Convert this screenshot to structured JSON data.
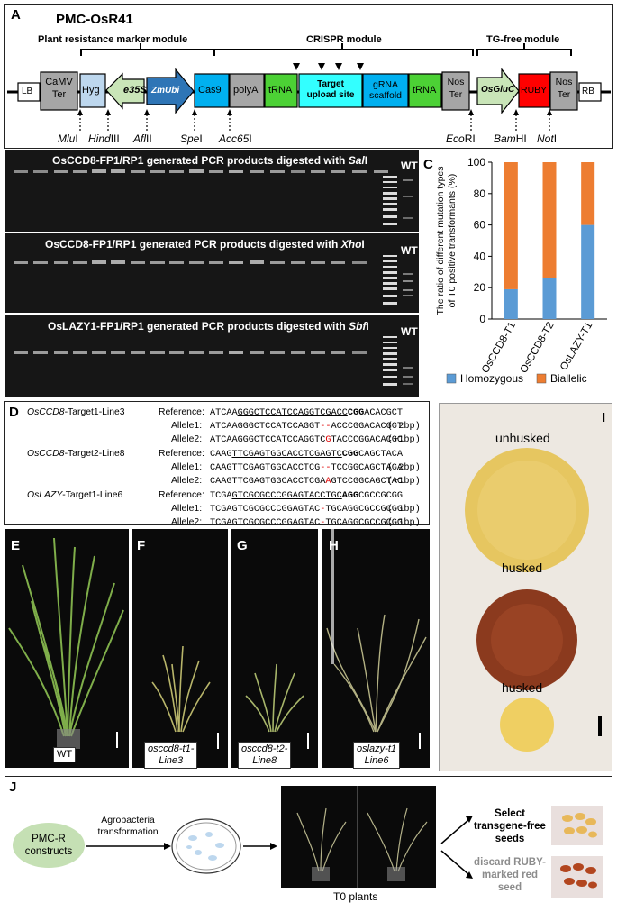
{
  "panelA": {
    "letter": "A",
    "title": "PMC-OsR41",
    "modules": [
      "Plant resistance marker module",
      "CRISPR module",
      "TG-free module"
    ],
    "elements": [
      "LB",
      "CaMV Ter",
      "Hyg",
      "e35S",
      "ZmUbi",
      "Cas9",
      "polyA",
      "tRNA",
      "Target upload site",
      "gRNA scaffold",
      "tRNA",
      "Nos Ter",
      "OsGluC",
      "RUBY",
      "Nos Ter",
      "RB"
    ],
    "sites": [
      "MluI",
      "HindIII",
      "AflII",
      "SpeI",
      "Acc65I",
      "EcoRI",
      "BamHI",
      "NotI"
    ],
    "colors": {
      "gray": "#a6a6a6",
      "hyg": "#bdd7ee",
      "e35s": "#c9e5b8",
      "zmubi": "#2e75b6",
      "cas9": "#00b0f0",
      "trna": "#4cd135",
      "target": "#33ffff",
      "ruby": "#ff0000",
      "glu": "#c9e5b8"
    }
  },
  "panelB": {
    "letter": "B",
    "gels": [
      {
        "title_pre": "OsCCD8-FP1/RP1 generated PCR products digested with ",
        "enzyme": "Sal",
        "suffix": "I",
        "wt": "WT"
      },
      {
        "title_pre": "OsCCD8-FP1/RP1 generated PCR products digested with ",
        "enzyme": "Xho",
        "suffix": "I",
        "wt": "WT"
      },
      {
        "title_pre": "OsLAZY1-FP1/RP1 generated PCR products digested with ",
        "enzyme": "Sbf",
        "suffix": "I",
        "wt": "WT"
      }
    ]
  },
  "panelC": {
    "letter": "C",
    "chart_data": {
      "type": "bar",
      "stacked": true,
      "categories": [
        "OsCCD8-T1",
        "OsCCD8-T2",
        "OsLAZY-T1"
      ],
      "series": [
        {
          "name": "Homozygous",
          "values": [
            19,
            26,
            60
          ],
          "color": "#5b9bd5"
        },
        {
          "name": "Biallelic",
          "values": [
            81,
            74,
            40
          ],
          "color": "#ed7d31"
        }
      ],
      "ylabel": "The ratio of different mutation types of T0 positive transformants (%)",
      "ylim": [
        0,
        100
      ],
      "yticks": [
        "0",
        "20",
        "40",
        "60",
        "80",
        "100"
      ],
      "legend": "bottom"
    }
  },
  "panelD": {
    "letter": "D",
    "groups": [
      {
        "gene": "OsCCD8",
        "name": "-Target1-Line3",
        "ref": {
          "label": "Reference:",
          "pre": "ATCAA",
          "ul": "GGGCTCCATCCAGGTCGACC",
          "pam": "CGG",
          "post": "ACACGCT"
        },
        "a1": {
          "label": "Allele1:",
          "pre": "ATCAAGGGCTCCATCCAGGT",
          "red": "--",
          "post": "ACCCGGACACGCT",
          "note": "(-2bp)"
        },
        "a2": {
          "label": "Allele2:",
          "pre": "ATCAAGGGCTCCATCCAGGTC",
          "red": "G",
          "post": "TACCCGGACACGC",
          "note": "(+1bp)"
        }
      },
      {
        "gene": "OsCCD8",
        "name": "-Target2-Line8",
        "ref": {
          "label": "Reference:",
          "pre": "CAAG",
          "ul": "TTCGAGTGGCACCTCGAGTC",
          "pam": "CGG",
          "post": "CAGCTACA"
        },
        "a1": {
          "label": "Allele1:",
          "pre": "CAAGTTCGAGTGGCACCTCG",
          "red": "--",
          "post": "TCCGGCAGCTACA",
          "note": "(-2bp)"
        },
        "a2": {
          "label": "Allele2:",
          "pre": "CAAGTTCGAGTGGCACCTCGA",
          "red": "A",
          "post": "GTCCGGCAGCTAC",
          "note": "(+1bp)"
        }
      },
      {
        "gene": "OsLAZY",
        "name": "-Target1-Line6",
        "ref": {
          "label": "Reference:",
          "pre": "TCGA",
          "ul": "GTCGCGCCCGGAGTACCTGC",
          "pam": "AGG",
          "post": "CGCCGCGG"
        },
        "a1": {
          "label": "Allele1:",
          "pre": "TCGAGTCGCGCCCGGAGTAC",
          "red": "-",
          "post": "TGCAGGCGCCGCGG",
          "note": "(-1bp)"
        },
        "a2": {
          "label": "Allele2:",
          "pre": "TCGAGTCGCGCCCGGAGTAC",
          "red": "-",
          "post": "TGCAGGCGCCGCGG",
          "note": "(-1bp)"
        }
      }
    ]
  },
  "panelE": {
    "letter": "E",
    "label": "WT"
  },
  "panelF": {
    "letter": "F",
    "label1": "osccd8-t1-",
    "label2": "Line3"
  },
  "panelG": {
    "letter": "G",
    "label1": "osccd8-t2-",
    "label2": "Line8"
  },
  "panelH": {
    "letter": "H",
    "label1": "oslazy-t1",
    "label2": "Line6"
  },
  "panelI": {
    "letter": "I",
    "labels": [
      "unhusked",
      "husked",
      "husked"
    ]
  },
  "panelJ": {
    "letter": "J",
    "construct": "PMC-R constructs",
    "step1": "Agrobacteria transformation",
    "plants": "T0 plants",
    "select": "Select transgene-free seeds",
    "discard": "discard RUBY-marked red seed"
  }
}
